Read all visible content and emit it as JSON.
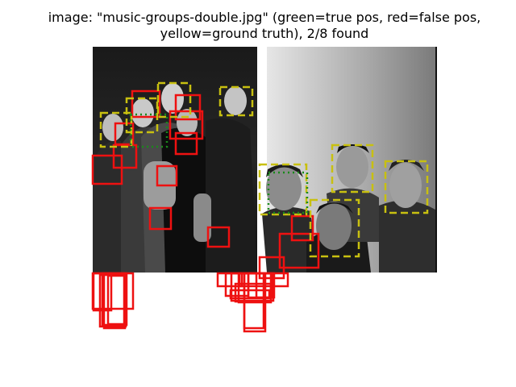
{
  "title": {
    "line1": "image: \"music-groups-double.jpg\" (green=true pos, red=false pos,",
    "line2": "yellow=ground truth), 2/8 found"
  },
  "legend_colors": {
    "true_positive": "#1a8a1a",
    "false_positive": "#ee1111",
    "ground_truth": "#c8c010"
  },
  "detections": {
    "ground_truth_count": 8,
    "true_positive_count": 2,
    "false_positive_count": 30
  }
}
